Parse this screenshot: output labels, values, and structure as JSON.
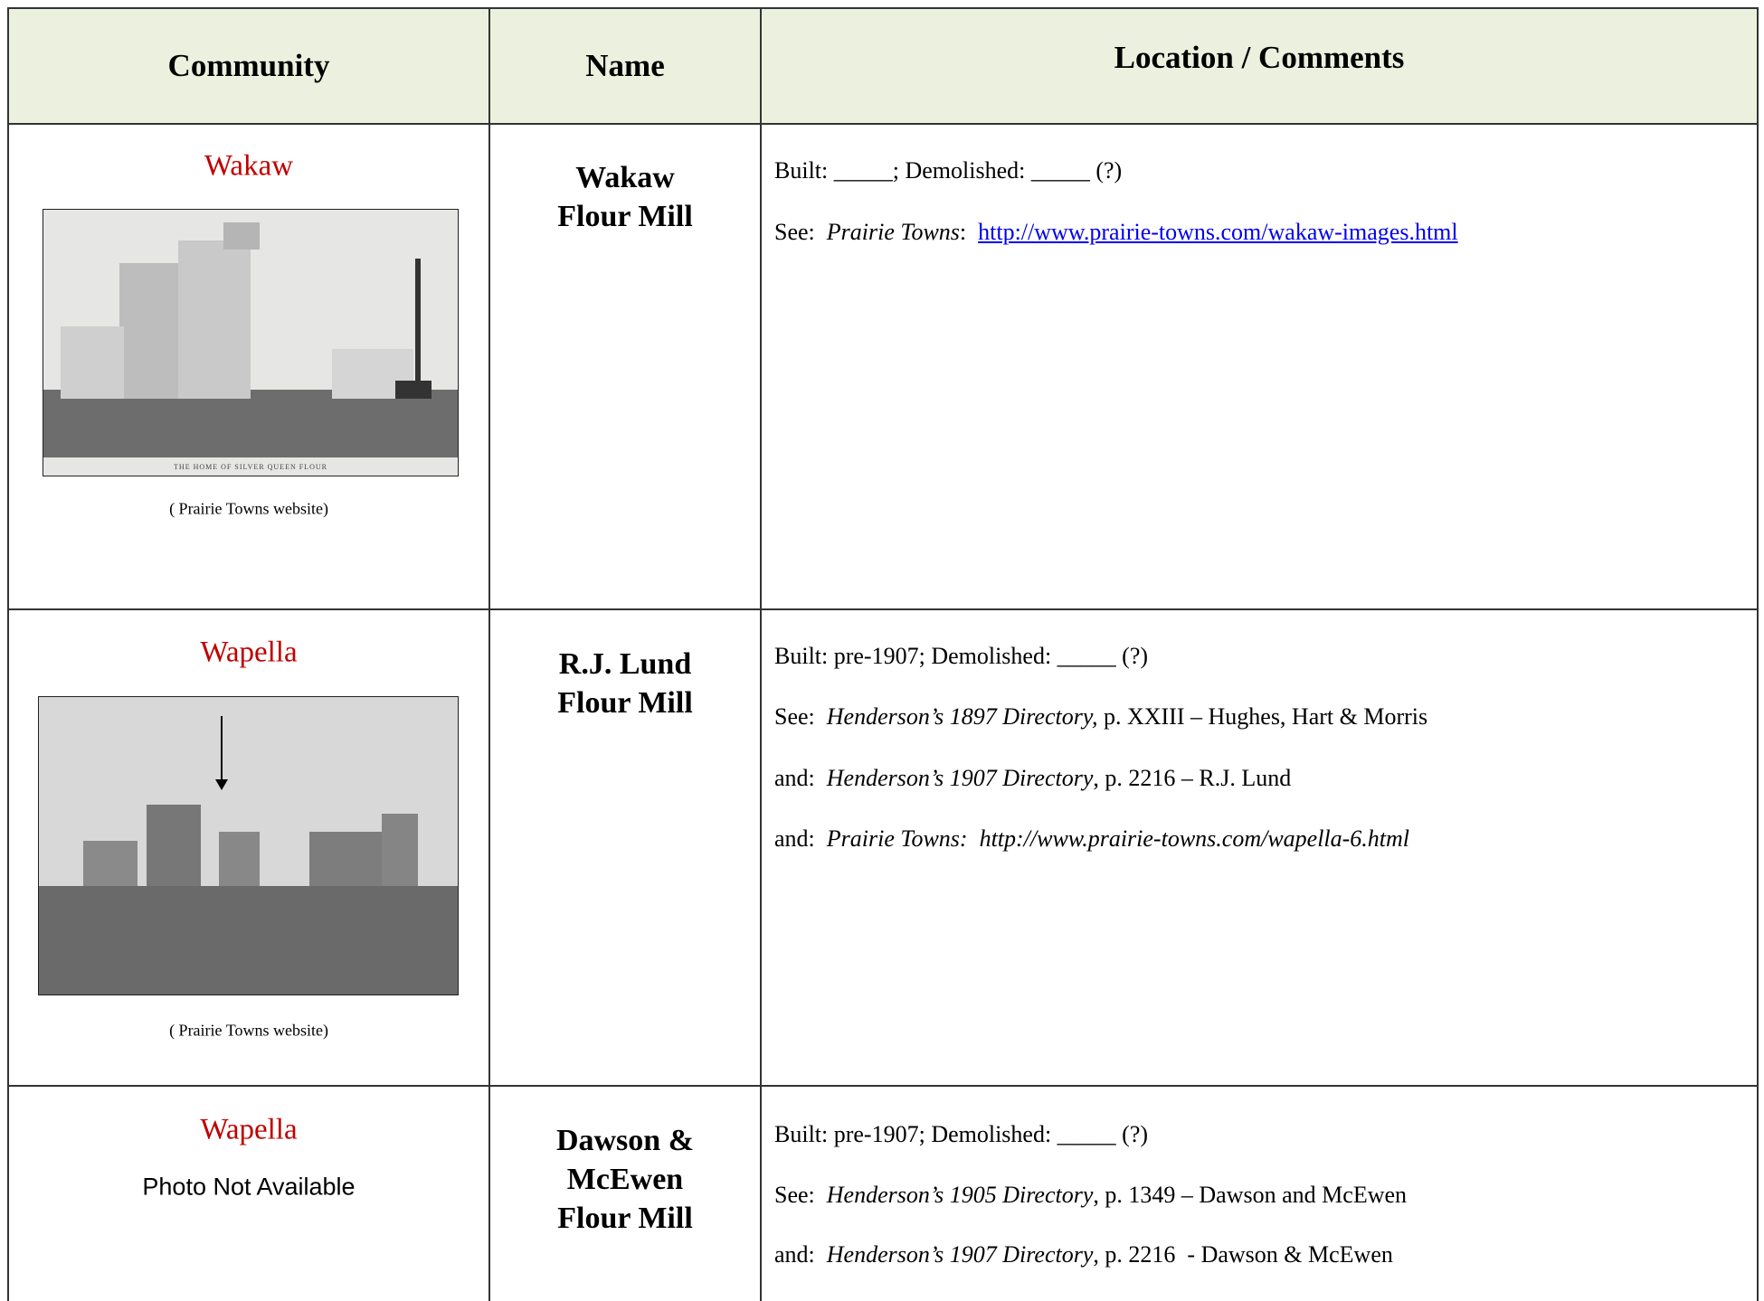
{
  "table": {
    "header": [
      "Community",
      "Name",
      "Location / Comments"
    ],
    "rows": [
      {
        "community": "Wakaw",
        "photo_text": "THE HOME OF SILVER QUEEN FLOUR",
        "caption": "( Prairie Towns website)",
        "name": "Wakaw\nFlour Mill",
        "comments": [
          [
            {
              "text": "Built: _____; Demolished: _____ (?)"
            }
          ],
          [
            {
              "text": "See:  "
            },
            {
              "text": "Prairie Towns",
              "italic": true
            },
            {
              "text": ":  "
            },
            {
              "text": "http://www.prairie-towns.com/wakaw-images.html",
              "link": true
            }
          ]
        ]
      },
      {
        "community": "Wapella",
        "caption": "( Prairie Towns website)",
        "name": "R.J. Lund\nFlour Mill",
        "comments": [
          [
            {
              "text": "Built: pre-1907; Demolished: _____ (?)"
            }
          ],
          [
            {
              "text": "See:  "
            },
            {
              "text": "Henderson’s 1897 Directory,",
              "italic": true
            },
            {
              "text": " p. XXIII – Hughes, Hart & Morris"
            }
          ],
          [
            {
              "text": "and:  "
            },
            {
              "text": "Henderson’s 1907 Directory",
              "italic": true
            },
            {
              "text": ", p. 2216 – R.J. Lund"
            }
          ],
          [
            {
              "text": "and:  "
            },
            {
              "text": "Prairie Towns:  http://www.prairie-towns.com/wapella-6.html",
              "italic": true
            }
          ]
        ]
      },
      {
        "community": "Wapella",
        "photo_note": "Photo Not Available",
        "name": "Dawson &\nMcEwen\nFlour Mill",
        "comments": [
          [
            {
              "text": "Built: pre-1907; Demolished: _____ (?)"
            }
          ],
          [
            {
              "text": "See:  "
            },
            {
              "text": "Henderson’s 1905 Directory",
              "italic": true
            },
            {
              "text": ", p. 1349 – Dawson and McEwen"
            }
          ],
          [
            {
              "text": "and:  "
            },
            {
              "text": "Henderson’s 1907 Directory",
              "italic": true
            },
            {
              "text": ", p. 2216  - Dawson & McEwen"
            }
          ]
        ]
      }
    ]
  }
}
